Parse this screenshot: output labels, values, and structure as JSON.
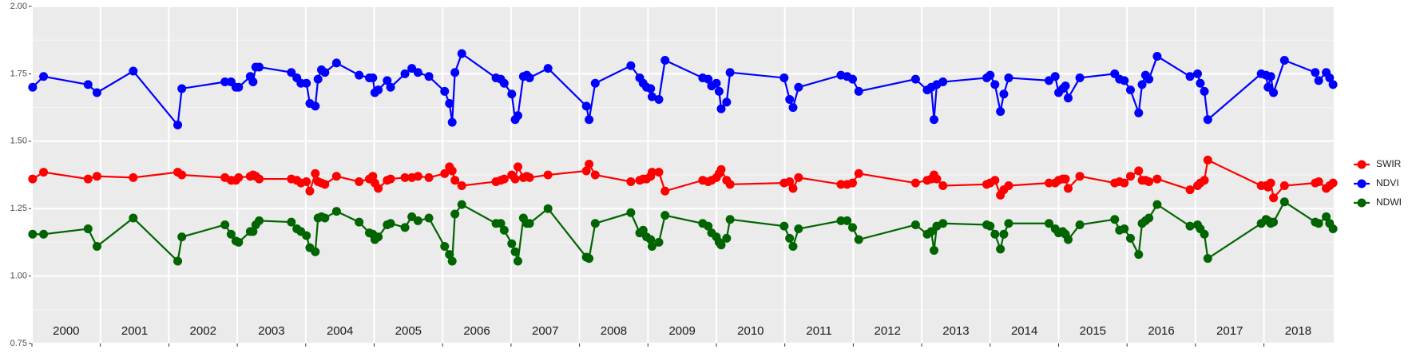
{
  "chart_data": {
    "type": "line",
    "x": [
      2000.01,
      2000.17,
      2000.82,
      2000.95,
      2001.48,
      2002.13,
      2002.19,
      2002.82,
      2002.91,
      2002.98,
      2003.02,
      2003.19,
      2003.23,
      2003.27,
      2003.32,
      2003.79,
      2003.87,
      2003.93,
      2004.01,
      2004.06,
      2004.14,
      2004.18,
      2004.23,
      2004.28,
      2004.45,
      2004.78,
      2004.93,
      2004.98,
      2005.01,
      2005.06,
      2005.19,
      2005.24,
      2005.45,
      2005.55,
      2005.64,
      2005.8,
      2006.03,
      2006.1,
      2006.14,
      2006.18,
      2006.28,
      2006.78,
      2006.85,
      2006.9,
      2007.01,
      2007.06,
      2007.1,
      2007.18,
      2007.23,
      2007.27,
      2007.54,
      2008.1,
      2008.14,
      2008.23,
      2008.75,
      2008.88,
      2008.93,
      2008.98,
      2009.04,
      2009.06,
      2009.16,
      2009.25,
      2009.8,
      2009.88,
      2009.93,
      2010.0,
      2010.04,
      2010.07,
      2010.15,
      2010.2,
      2010.99,
      2011.07,
      2011.12,
      2011.2,
      2011.82,
      2011.91,
      2011.99,
      2012.08,
      2012.91,
      2013.08,
      2013.14,
      2013.18,
      2013.22,
      2013.31,
      2013.95,
      2014.0,
      2014.07,
      2014.15,
      2014.2,
      2014.27,
      2014.86,
      2014.95,
      2015.0,
      2015.06,
      2015.1,
      2015.14,
      2015.31,
      2015.82,
      2015.89,
      2015.96,
      2016.05,
      2016.17,
      2016.22,
      2016.27,
      2016.32,
      2016.44,
      2016.92,
      2017.03,
      2017.07,
      2017.13,
      2017.18,
      2017.96,
      2018.03,
      2018.06,
      2018.1,
      2018.14,
      2018.3,
      2018.75,
      2018.8,
      2018.91,
      2018.96,
      2019.01
    ],
    "series": [
      {
        "name": "SWIR",
        "color": "#ff0000",
        "values": [
          1.36,
          1.385,
          1.36,
          1.37,
          1.365,
          1.385,
          1.375,
          1.365,
          1.355,
          1.355,
          1.365,
          1.37,
          1.375,
          1.37,
          1.36,
          1.36,
          1.355,
          1.345,
          1.35,
          1.315,
          1.38,
          1.35,
          1.345,
          1.34,
          1.37,
          1.35,
          1.36,
          1.37,
          1.345,
          1.325,
          1.355,
          1.36,
          1.365,
          1.365,
          1.37,
          1.365,
          1.38,
          1.405,
          1.39,
          1.355,
          1.335,
          1.35,
          1.355,
          1.36,
          1.375,
          1.36,
          1.405,
          1.365,
          1.37,
          1.365,
          1.375,
          1.39,
          1.415,
          1.375,
          1.35,
          1.355,
          1.36,
          1.36,
          1.37,
          1.385,
          1.385,
          1.315,
          1.355,
          1.35,
          1.355,
          1.365,
          1.38,
          1.395,
          1.355,
          1.34,
          1.345,
          1.35,
          1.325,
          1.365,
          1.34,
          1.34,
          1.345,
          1.38,
          1.345,
          1.355,
          1.36,
          1.375,
          1.36,
          1.335,
          1.34,
          1.345,
          1.355,
          1.3,
          1.32,
          1.335,
          1.345,
          1.345,
          1.355,
          1.36,
          1.36,
          1.325,
          1.37,
          1.345,
          1.35,
          1.345,
          1.37,
          1.39,
          1.355,
          1.355,
          1.35,
          1.36,
          1.32,
          1.335,
          1.345,
          1.355,
          1.43,
          1.335,
          1.335,
          1.33,
          1.345,
          1.29,
          1.335,
          1.345,
          1.35,
          1.325,
          1.335,
          1.345
        ]
      },
      {
        "name": "NDVI",
        "color": "#0000ff",
        "values": [
          1.7,
          1.74,
          1.71,
          1.68,
          1.76,
          1.56,
          1.695,
          1.72,
          1.72,
          1.7,
          1.7,
          1.74,
          1.72,
          1.775,
          1.775,
          1.755,
          1.735,
          1.715,
          1.715,
          1.64,
          1.63,
          1.73,
          1.765,
          1.755,
          1.79,
          1.745,
          1.735,
          1.735,
          1.68,
          1.69,
          1.725,
          1.7,
          1.75,
          1.77,
          1.755,
          1.74,
          1.685,
          1.64,
          1.57,
          1.755,
          1.825,
          1.735,
          1.73,
          1.715,
          1.675,
          1.58,
          1.595,
          1.74,
          1.745,
          1.735,
          1.77,
          1.63,
          1.58,
          1.715,
          1.78,
          1.735,
          1.715,
          1.7,
          1.695,
          1.665,
          1.655,
          1.8,
          1.735,
          1.73,
          1.705,
          1.715,
          1.685,
          1.62,
          1.645,
          1.755,
          1.735,
          1.655,
          1.625,
          1.7,
          1.745,
          1.74,
          1.73,
          1.685,
          1.73,
          1.69,
          1.7,
          1.58,
          1.71,
          1.72,
          1.735,
          1.745,
          1.71,
          1.61,
          1.675,
          1.735,
          1.725,
          1.74,
          1.68,
          1.695,
          1.705,
          1.66,
          1.735,
          1.75,
          1.73,
          1.725,
          1.69,
          1.605,
          1.71,
          1.745,
          1.73,
          1.815,
          1.74,
          1.75,
          1.715,
          1.685,
          1.58,
          1.75,
          1.745,
          1.7,
          1.74,
          1.68,
          1.8,
          1.755,
          1.725,
          1.755,
          1.735,
          1.71
        ]
      },
      {
        "name": "NDWI",
        "color": "#006400",
        "values": [
          1.155,
          1.155,
          1.175,
          1.11,
          1.215,
          1.055,
          1.145,
          1.19,
          1.155,
          1.13,
          1.125,
          1.165,
          1.165,
          1.19,
          1.205,
          1.2,
          1.175,
          1.165,
          1.15,
          1.105,
          1.09,
          1.215,
          1.22,
          1.215,
          1.24,
          1.2,
          1.16,
          1.155,
          1.135,
          1.145,
          1.19,
          1.195,
          1.18,
          1.22,
          1.205,
          1.215,
          1.11,
          1.08,
          1.055,
          1.23,
          1.265,
          1.195,
          1.195,
          1.17,
          1.12,
          1.09,
          1.055,
          1.215,
          1.195,
          1.195,
          1.25,
          1.07,
          1.065,
          1.195,
          1.235,
          1.16,
          1.17,
          1.145,
          1.135,
          1.11,
          1.125,
          1.225,
          1.195,
          1.185,
          1.16,
          1.145,
          1.125,
          1.115,
          1.14,
          1.21,
          1.185,
          1.14,
          1.11,
          1.175,
          1.205,
          1.205,
          1.18,
          1.135,
          1.19,
          1.155,
          1.165,
          1.095,
          1.185,
          1.195,
          1.19,
          1.185,
          1.155,
          1.1,
          1.155,
          1.195,
          1.195,
          1.175,
          1.16,
          1.165,
          1.155,
          1.135,
          1.19,
          1.21,
          1.17,
          1.175,
          1.14,
          1.08,
          1.195,
          1.205,
          1.215,
          1.265,
          1.185,
          1.19,
          1.175,
          1.155,
          1.065,
          1.195,
          1.21,
          1.205,
          1.195,
          1.2,
          1.275,
          1.2,
          1.195,
          1.22,
          1.195,
          1.175
        ]
      }
    ],
    "xlim": [
      2000.0,
      2019.02
    ],
    "xticks": [
      2000,
      2001,
      2002,
      2003,
      2004,
      2005,
      2006,
      2007,
      2008,
      2009,
      2010,
      2011,
      2012,
      2013,
      2014,
      2015,
      2016,
      2017,
      2018
    ],
    "year_labels": [
      2000,
      2001,
      2002,
      2003,
      2004,
      2005,
      2006,
      2007,
      2008,
      2009,
      2010,
      2011,
      2012,
      2013,
      2014,
      2015,
      2016,
      2017,
      2018
    ],
    "ylim": [
      0.75,
      2.0
    ],
    "yticks": [
      {
        "value": 0.75,
        "label": "0.75"
      },
      {
        "value": 1.0,
        "label": "1.00"
      },
      {
        "value": 1.25,
        "label": "1.25"
      },
      {
        "value": 1.5,
        "label": "1.50"
      },
      {
        "value": 1.75,
        "label": "1.75"
      },
      {
        "value": 2.0,
        "label": "2.00"
      }
    ],
    "grid": true
  }
}
